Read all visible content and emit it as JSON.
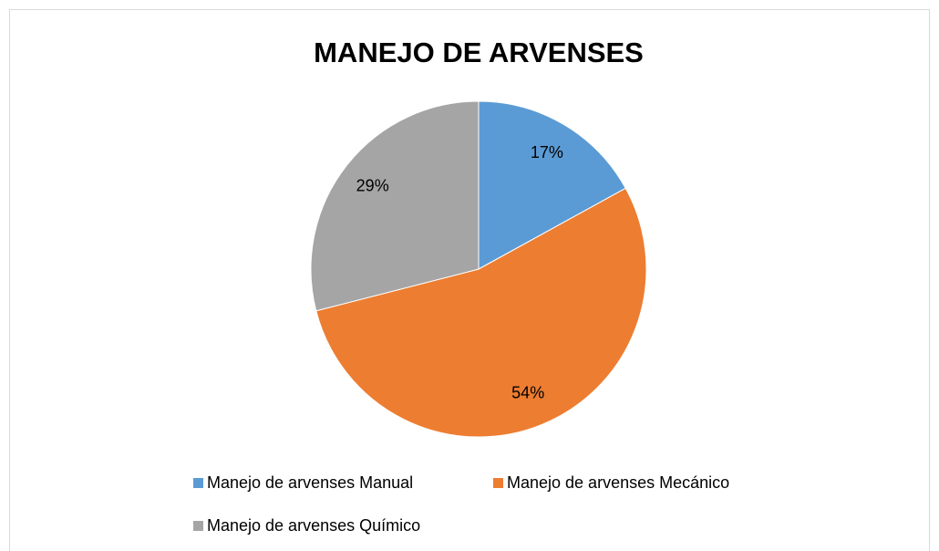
{
  "chart_data": {
    "type": "pie",
    "title": "MANEJO DE ARVENSES",
    "categories": [
      "Manejo de arvenses Manual",
      "Manejo de arvenses Mecánico",
      "Manejo de arvenses Químico"
    ],
    "values": [
      17,
      54,
      29
    ],
    "value_labels": [
      "17%",
      "54%",
      "29%"
    ],
    "colors": [
      "#5b9bd5",
      "#ed7d31",
      "#a5a5a5"
    ],
    "legend": "bottom"
  }
}
